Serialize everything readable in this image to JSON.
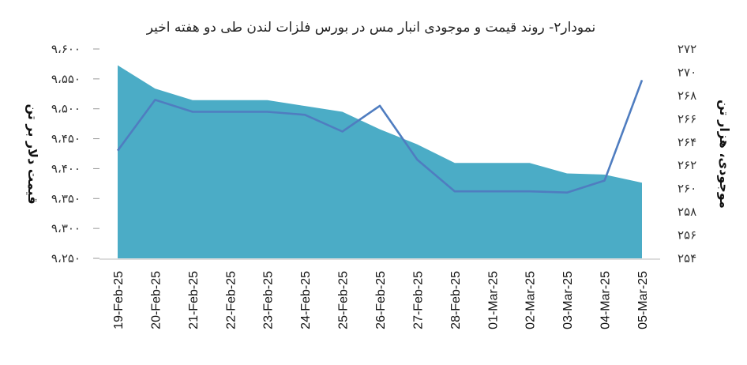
{
  "chart_data": {
    "type": "area",
    "title": "نمودار۲- روند قیمت و موجودی انبار مس در بورس فلزات لندن طی دو هفته اخیر",
    "ylabel_left": "قیمت دلار بر تن",
    "ylabel_right": "موجودی، هزار تن",
    "categories": [
      "19-Feb-25",
      "20-Feb-25",
      "21-Feb-25",
      "22-Feb-25",
      "23-Feb-25",
      "24-Feb-25",
      "25-Feb-25",
      "26-Feb-25",
      "27-Feb-25",
      "28-Feb-25",
      "01-Mar-25",
      "02-Mar-25",
      "03-Mar-25",
      "04-Mar-25",
      "05-Mar-25"
    ],
    "ylim_left": [
      9250,
      9600
    ],
    "ylim_right": [
      254,
      272
    ],
    "yticks_left": [
      "۹،۲۵۰",
      "۹،۳۰۰",
      "۹،۳۵۰",
      "۹،۴۰۰",
      "۹،۴۵۰",
      "۹،۵۰۰",
      "۹،۵۵۰",
      "۹،۶۰۰"
    ],
    "yticks_right": [
      "۲۵۴",
      "۲۵۶",
      "۲۵۸",
      "۲۶۰",
      "۲۶۲",
      "۲۶۴",
      "۲۶۶",
      "۲۶۸",
      "۲۷۰",
      "۲۷۲"
    ],
    "series": [
      {
        "axis": "right",
        "style": "area",
        "color": "#4BACC6",
        "values": [
          270.6,
          268.6,
          267.6,
          267.6,
          267.6,
          267.1,
          266.6,
          265.1,
          263.8,
          262.2,
          262.2,
          262.2,
          261.3,
          261.2,
          260.5
        ]
      },
      {
        "axis": "left",
        "style": "line",
        "color": "#4F7DC0",
        "values": [
          9430,
          9515,
          9495,
          9495,
          9495,
          9490,
          9462,
          9505,
          9415,
          9362,
          9362,
          9362,
          9360,
          9380,
          9548
        ]
      }
    ]
  }
}
